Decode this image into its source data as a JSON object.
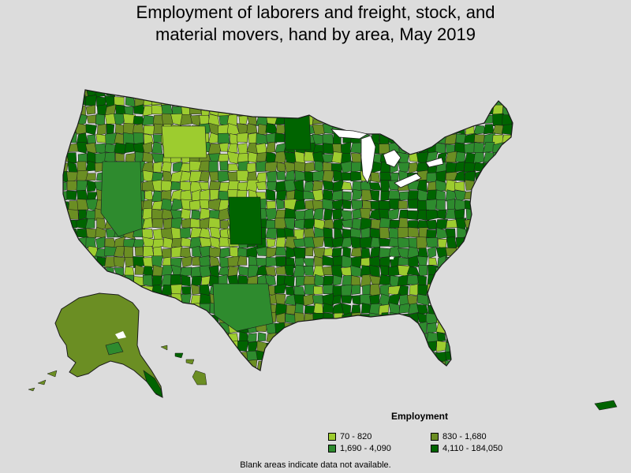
{
  "title": {
    "line1": "Employment of laborers and freight, stock, and",
    "line2": "material movers, hand by area, May 2019"
  },
  "legend": {
    "title": "Employment",
    "items": [
      {
        "label": "70 - 820",
        "color": "#9dcc2f"
      },
      {
        "label": "830 - 1,680",
        "color": "#6b8e23"
      },
      {
        "label": "1,690 - 4,090",
        "color": "#2e8b2e"
      },
      {
        "label": "4,110 - 184,050",
        "color": "#006400"
      }
    ]
  },
  "footnote": "Blank areas indicate data not available.",
  "colors": {
    "background": "#dcdcdc",
    "border": "#1a1a1a",
    "water": "#ffffff"
  }
}
